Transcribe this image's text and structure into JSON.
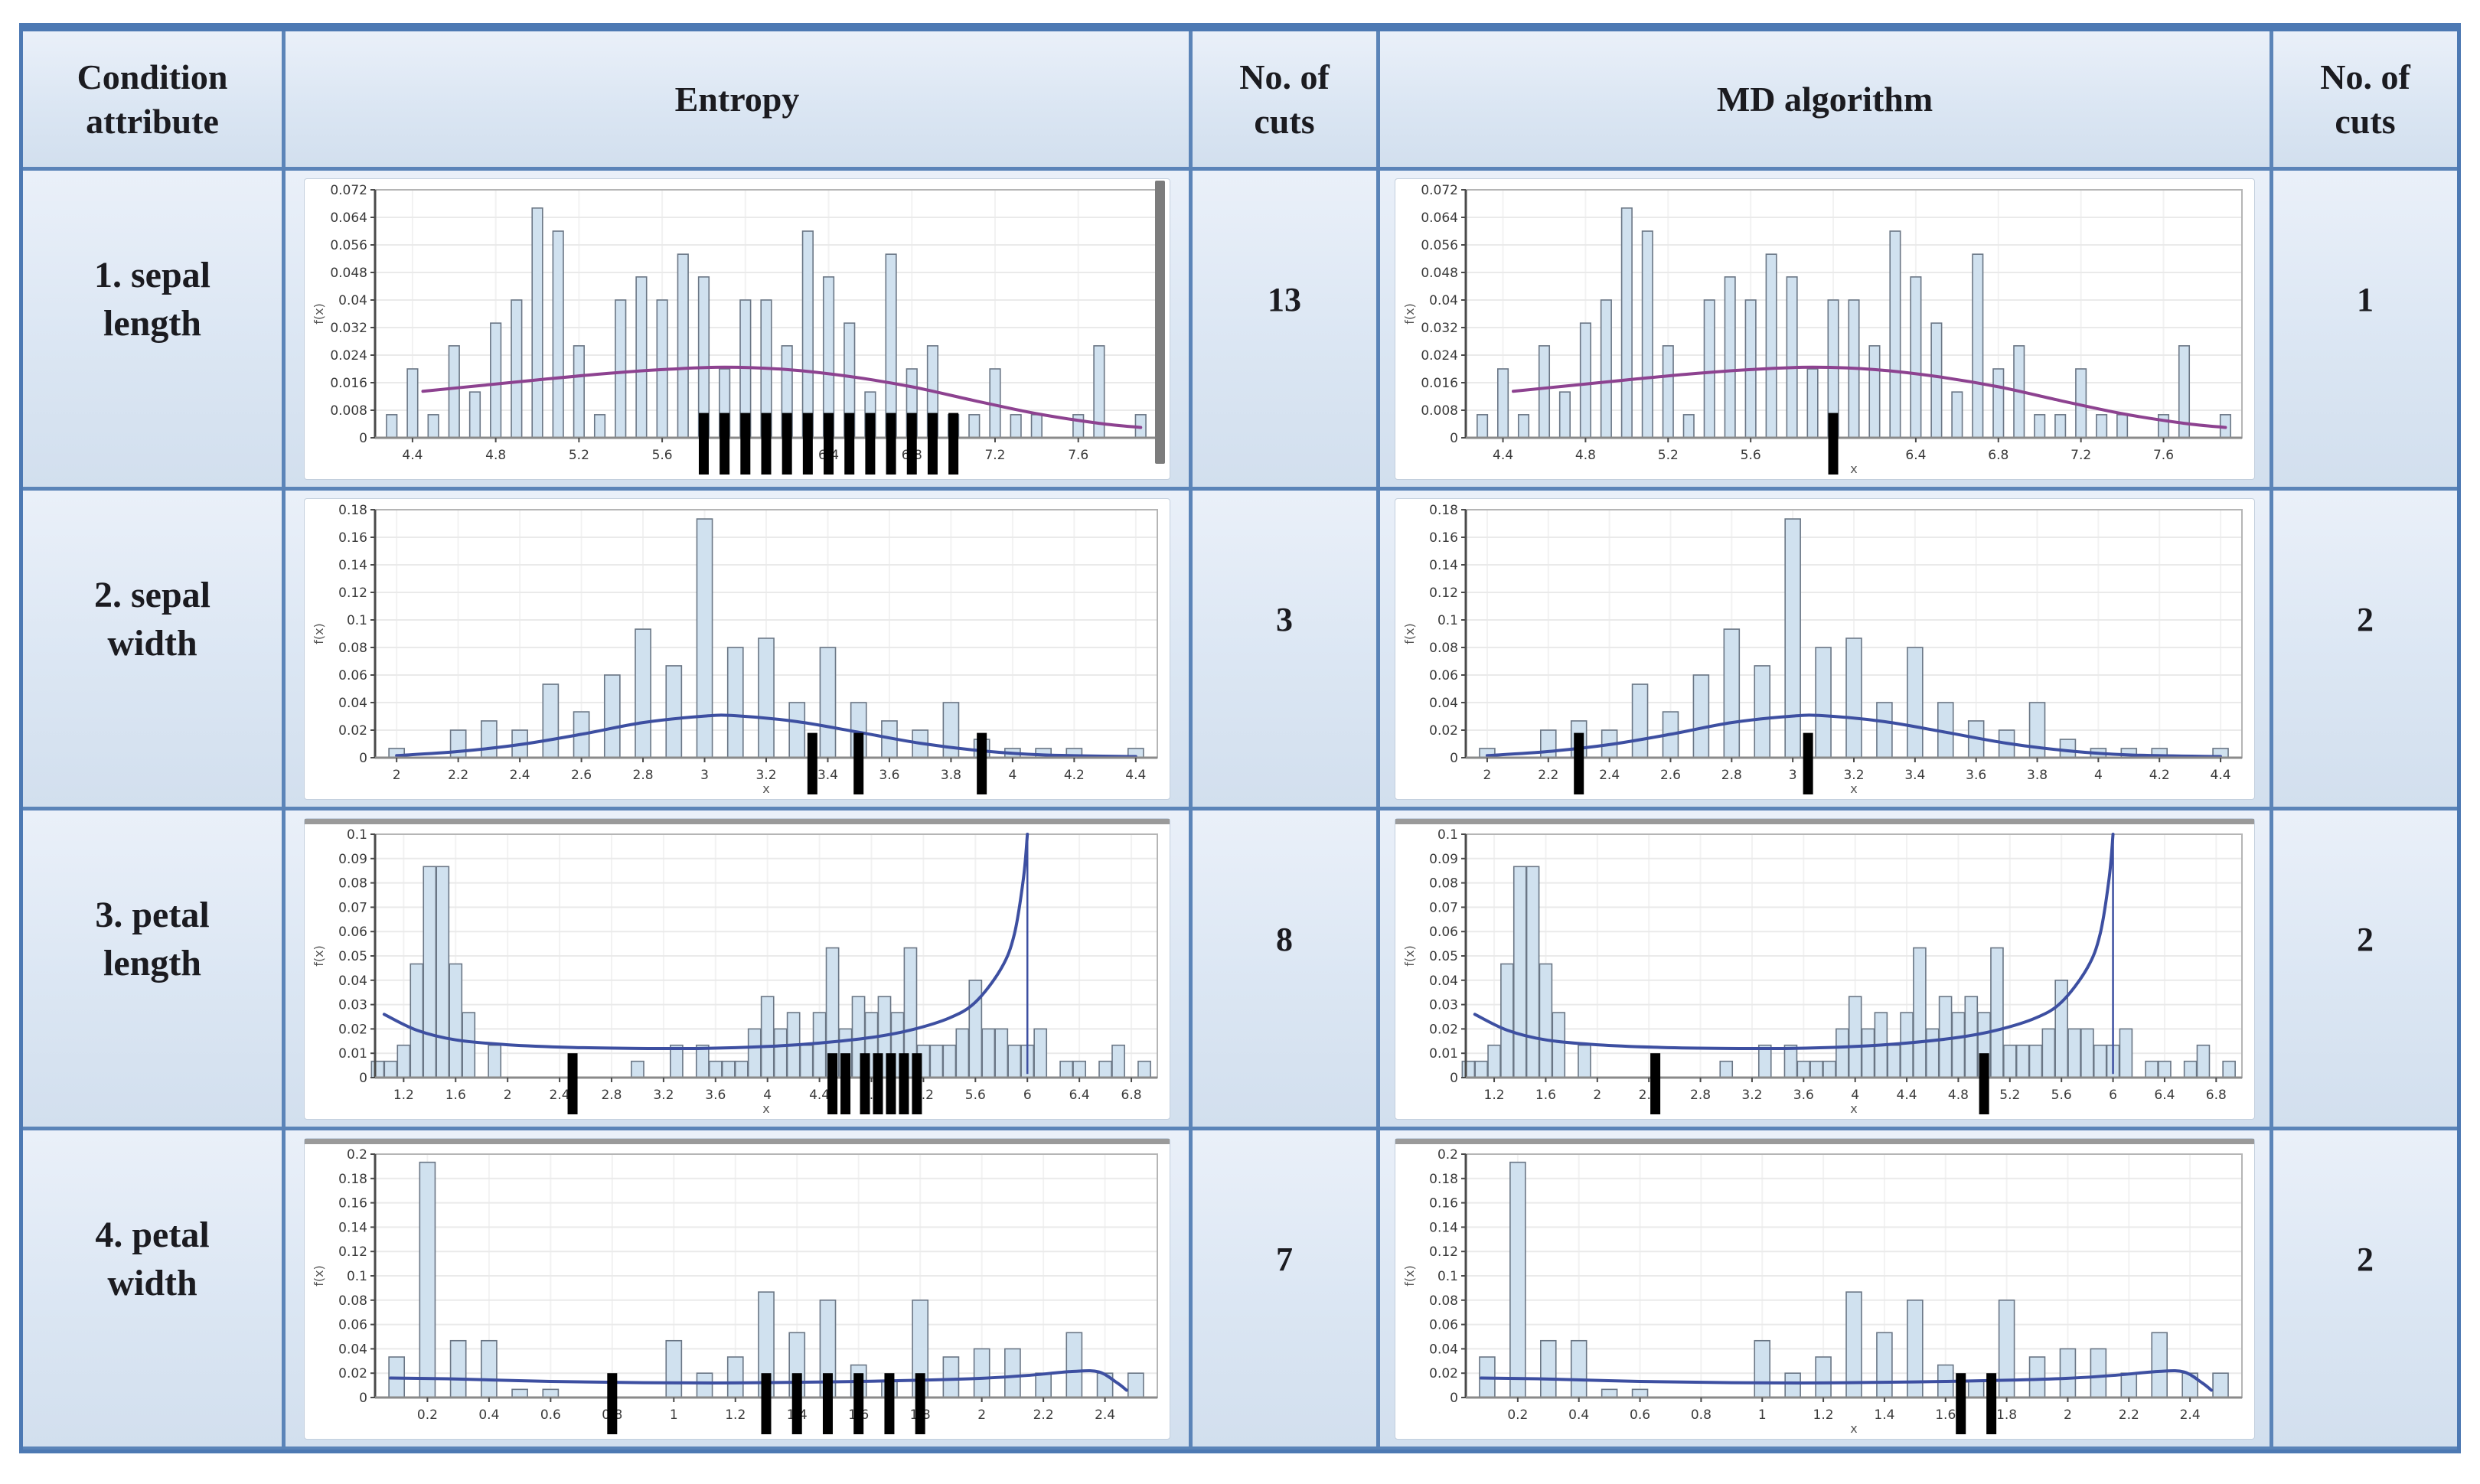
{
  "table": {
    "header": {
      "col1": "Condition attribute",
      "col2": "Entropy",
      "col3": "No. of cuts",
      "col4": "MD algorithm",
      "col5": "No. of cuts"
    },
    "rows": [
      {
        "attribute": "1. sepal length",
        "entropy_cuts": "13",
        "md_cuts": "1"
      },
      {
        "attribute": "2. sepal width",
        "entropy_cuts": "3",
        "md_cuts": "2"
      },
      {
        "attribute": "3. petal length",
        "entropy_cuts": "8",
        "md_cuts": "2"
      },
      {
        "attribute": "4. petal width",
        "entropy_cuts": "7",
        "md_cuts": "2"
      }
    ]
  },
  "colors": {
    "border_blue": "#4d79b3",
    "cell_blue": "#dbe6f3",
    "bar_fill": "#d0e1ef",
    "bar_stroke": "#6a7685",
    "cut_mark": "#000000",
    "curve_row1": "#8d4290",
    "curve_rows234": "#3d4fa1"
  },
  "chart_data": [
    {
      "type": "bar",
      "attribute": "sepal length",
      "xlabel": "x",
      "ylabel": "f(x)",
      "xlim": [
        4.22,
        7.98
      ],
      "ylim": [
        0,
        0.072
      ],
      "ytick_step": 0.008,
      "xticks": [
        "4.4",
        "4.8",
        "5.2",
        "5.6",
        "6",
        "6.4",
        "6.8",
        "7.2",
        "7.6"
      ],
      "bar_width": 0.05,
      "grid": true,
      "thick_top": false,
      "end_drop": false,
      "curve_color": "#8d4290",
      "bars": [
        [
          4.3,
          0.0067
        ],
        [
          4.4,
          0.02
        ],
        [
          4.5,
          0.0067
        ],
        [
          4.6,
          0.0267
        ],
        [
          4.7,
          0.0133
        ],
        [
          4.8,
          0.0333
        ],
        [
          4.9,
          0.04
        ],
        [
          5.0,
          0.0667
        ],
        [
          5.1,
          0.06
        ],
        [
          5.2,
          0.0267
        ],
        [
          5.3,
          0.0067
        ],
        [
          5.4,
          0.04
        ],
        [
          5.5,
          0.0467
        ],
        [
          5.6,
          0.04
        ],
        [
          5.7,
          0.0533
        ],
        [
          5.8,
          0.0467
        ],
        [
          5.9,
          0.02
        ],
        [
          6.0,
          0.04
        ],
        [
          6.1,
          0.04
        ],
        [
          6.2,
          0.0267
        ],
        [
          6.3,
          0.06
        ],
        [
          6.4,
          0.0467
        ],
        [
          6.5,
          0.0333
        ],
        [
          6.6,
          0.0133
        ],
        [
          6.7,
          0.0533
        ],
        [
          6.8,
          0.02
        ],
        [
          6.9,
          0.0267
        ],
        [
          7.0,
          0.0067
        ],
        [
          7.1,
          0.0067
        ],
        [
          7.2,
          0.02
        ],
        [
          7.3,
          0.0067
        ],
        [
          7.4,
          0.0067
        ],
        [
          7.6,
          0.0067
        ],
        [
          7.7,
          0.0267
        ],
        [
          7.9,
          0.0067
        ]
      ],
      "curve": [
        [
          4.45,
          0.0135
        ],
        [
          4.7,
          0.015
        ],
        [
          5.0,
          0.0168
        ],
        [
          5.3,
          0.0185
        ],
        [
          5.6,
          0.0198
        ],
        [
          5.9,
          0.0205
        ],
        [
          6.2,
          0.0198
        ],
        [
          6.5,
          0.0178
        ],
        [
          6.8,
          0.0148
        ],
        [
          7.1,
          0.0108
        ],
        [
          7.4,
          0.007
        ],
        [
          7.7,
          0.0042
        ],
        [
          7.9,
          0.003
        ]
      ],
      "entropy_cuts": [
        5.8,
        5.9,
        6.0,
        6.1,
        6.2,
        6.3,
        6.4,
        6.5,
        6.6,
        6.7,
        6.8,
        6.9,
        7.0
      ],
      "md_cuts": [
        6.0
      ]
    },
    {
      "type": "bar",
      "attribute": "sepal width",
      "xlabel": "x",
      "ylabel": "f(x)",
      "xlim": [
        1.93,
        4.47
      ],
      "ylim": [
        0,
        0.18
      ],
      "ytick_step": 0.02,
      "xticks": [
        "2",
        "2.2",
        "2.4",
        "2.6",
        "2.8",
        "3",
        "3.2",
        "3.4",
        "3.6",
        "3.8",
        "4",
        "4.2",
        "4.4"
      ],
      "bar_width": 0.05,
      "grid": true,
      "thick_top": false,
      "end_drop": false,
      "curve_color": "#3d4fa1",
      "bars": [
        [
          2.0,
          0.0067
        ],
        [
          2.2,
          0.02
        ],
        [
          2.3,
          0.0267
        ],
        [
          2.4,
          0.02
        ],
        [
          2.5,
          0.0533
        ],
        [
          2.6,
          0.0333
        ],
        [
          2.7,
          0.06
        ],
        [
          2.8,
          0.0933
        ],
        [
          2.9,
          0.0667
        ],
        [
          3.0,
          0.1733
        ],
        [
          3.1,
          0.08
        ],
        [
          3.2,
          0.0867
        ],
        [
          3.3,
          0.04
        ],
        [
          3.4,
          0.08
        ],
        [
          3.5,
          0.04
        ],
        [
          3.6,
          0.0267
        ],
        [
          3.7,
          0.02
        ],
        [
          3.8,
          0.04
        ],
        [
          3.9,
          0.0133
        ],
        [
          4.0,
          0.0067
        ],
        [
          4.1,
          0.0067
        ],
        [
          4.2,
          0.0067
        ],
        [
          4.4,
          0.0067
        ]
      ],
      "curve": [
        [
          2.0,
          0.0015
        ],
        [
          2.2,
          0.0045
        ],
        [
          2.4,
          0.0095
        ],
        [
          2.6,
          0.017
        ],
        [
          2.8,
          0.0255
        ],
        [
          3.0,
          0.0302
        ],
        [
          3.1,
          0.0305
        ],
        [
          3.3,
          0.0262
        ],
        [
          3.5,
          0.0185
        ],
        [
          3.7,
          0.0105
        ],
        [
          3.9,
          0.005
        ],
        [
          4.1,
          0.002
        ],
        [
          4.4,
          0.0008
        ]
      ],
      "entropy_cuts": [
        3.35,
        3.5,
        3.9
      ],
      "md_cuts": [
        2.3,
        3.05
      ]
    },
    {
      "type": "bar",
      "attribute": "petal length",
      "xlabel": "x",
      "ylabel": "f(x)",
      "xlim": [
        0.98,
        7.0
      ],
      "ylim": [
        0,
        0.1
      ],
      "ytick_step": 0.01,
      "xticks": [
        "1.2",
        "1.6",
        "2",
        "2.4",
        "2.8",
        "3.2",
        "3.6",
        "4",
        "4.4",
        "4.8",
        "5.2",
        "5.6",
        "6",
        "6.4",
        "6.8"
      ],
      "bar_width": 0.095,
      "grid": true,
      "thick_top": true,
      "end_drop": true,
      "curve_color": "#3d4fa1",
      "bars": [
        [
          1.0,
          0.0067
        ],
        [
          1.1,
          0.0067
        ],
        [
          1.2,
          0.0133
        ],
        [
          1.3,
          0.0467
        ],
        [
          1.4,
          0.0867
        ],
        [
          1.5,
          0.0867
        ],
        [
          1.6,
          0.0467
        ],
        [
          1.7,
          0.0267
        ],
        [
          1.9,
          0.0133
        ],
        [
          3.0,
          0.0067
        ],
        [
          3.3,
          0.0133
        ],
        [
          3.5,
          0.0133
        ],
        [
          3.6,
          0.0067
        ],
        [
          3.7,
          0.0067
        ],
        [
          3.8,
          0.0067
        ],
        [
          3.9,
          0.02
        ],
        [
          4.0,
          0.0333
        ],
        [
          4.1,
          0.02
        ],
        [
          4.2,
          0.0267
        ],
        [
          4.3,
          0.0133
        ],
        [
          4.4,
          0.0267
        ],
        [
          4.5,
          0.0533
        ],
        [
          4.6,
          0.02
        ],
        [
          4.7,
          0.0333
        ],
        [
          4.8,
          0.0267
        ],
        [
          4.9,
          0.0333
        ],
        [
          5.0,
          0.0267
        ],
        [
          5.1,
          0.0533
        ],
        [
          5.2,
          0.0133
        ],
        [
          5.3,
          0.0133
        ],
        [
          5.4,
          0.0133
        ],
        [
          5.5,
          0.02
        ],
        [
          5.6,
          0.04
        ],
        [
          5.7,
          0.02
        ],
        [
          5.8,
          0.02
        ],
        [
          5.9,
          0.0133
        ],
        [
          6.0,
          0.0133
        ],
        [
          6.1,
          0.02
        ],
        [
          6.3,
          0.0067
        ],
        [
          6.4,
          0.0067
        ],
        [
          6.6,
          0.0067
        ],
        [
          6.7,
          0.0133
        ],
        [
          6.9,
          0.0067
        ]
      ],
      "curve": [
        [
          1.05,
          0.026
        ],
        [
          1.3,
          0.0195
        ],
        [
          1.6,
          0.0155
        ],
        [
          2.0,
          0.0135
        ],
        [
          2.5,
          0.0124
        ],
        [
          3.0,
          0.012
        ],
        [
          3.5,
          0.012
        ],
        [
          4.0,
          0.0128
        ],
        [
          4.4,
          0.0142
        ],
        [
          4.8,
          0.0165
        ],
        [
          5.1,
          0.0195
        ],
        [
          5.4,
          0.0245
        ],
        [
          5.6,
          0.031
        ],
        [
          5.8,
          0.045
        ],
        [
          5.9,
          0.059
        ],
        [
          5.97,
          0.082
        ],
        [
          6.0,
          0.1
        ]
      ],
      "entropy_cuts": [
        2.5,
        4.5,
        4.6,
        4.75,
        4.85,
        4.95,
        5.05,
        5.15
      ],
      "md_cuts": [
        2.45,
        5.0
      ]
    },
    {
      "type": "bar",
      "attribute": "petal width",
      "xlabel": "x",
      "ylabel": "f(x)",
      "xlim": [
        0.03,
        2.57
      ],
      "ylim": [
        0,
        0.2
      ],
      "ytick_step": 0.02,
      "xticks": [
        "0.2",
        "0.4",
        "0.6",
        "0.8",
        "1",
        "1.2",
        "1.4",
        "1.6",
        "1.8",
        "2",
        "2.2",
        "2.4"
      ],
      "bar_width": 0.05,
      "grid": true,
      "thick_top": true,
      "end_drop": false,
      "curve_color": "#3d4fa1",
      "bars": [
        [
          0.1,
          0.0333
        ],
        [
          0.2,
          0.1933
        ],
        [
          0.3,
          0.0467
        ],
        [
          0.4,
          0.0467
        ],
        [
          0.5,
          0.0067
        ],
        [
          0.6,
          0.0067
        ],
        [
          1.0,
          0.0467
        ],
        [
          1.1,
          0.02
        ],
        [
          1.2,
          0.0333
        ],
        [
          1.3,
          0.0867
        ],
        [
          1.4,
          0.0533
        ],
        [
          1.5,
          0.08
        ],
        [
          1.6,
          0.0267
        ],
        [
          1.7,
          0.0133
        ],
        [
          1.8,
          0.08
        ],
        [
          1.9,
          0.0333
        ],
        [
          2.0,
          0.04
        ],
        [
          2.1,
          0.04
        ],
        [
          2.2,
          0.02
        ],
        [
          2.3,
          0.0533
        ],
        [
          2.4,
          0.02
        ],
        [
          2.5,
          0.02
        ]
      ],
      "curve": [
        [
          0.08,
          0.016
        ],
        [
          0.3,
          0.0152
        ],
        [
          0.6,
          0.0132
        ],
        [
          0.9,
          0.0122
        ],
        [
          1.2,
          0.012
        ],
        [
          1.5,
          0.0128
        ],
        [
          1.8,
          0.0142
        ],
        [
          2.0,
          0.0158
        ],
        [
          2.15,
          0.0182
        ],
        [
          2.3,
          0.0215
        ],
        [
          2.38,
          0.021
        ],
        [
          2.44,
          0.012
        ],
        [
          2.47,
          0.006
        ]
      ],
      "entropy_cuts": [
        0.8,
        1.3,
        1.4,
        1.5,
        1.6,
        1.7,
        1.8
      ],
      "md_cuts": [
        1.65,
        1.75
      ]
    }
  ]
}
